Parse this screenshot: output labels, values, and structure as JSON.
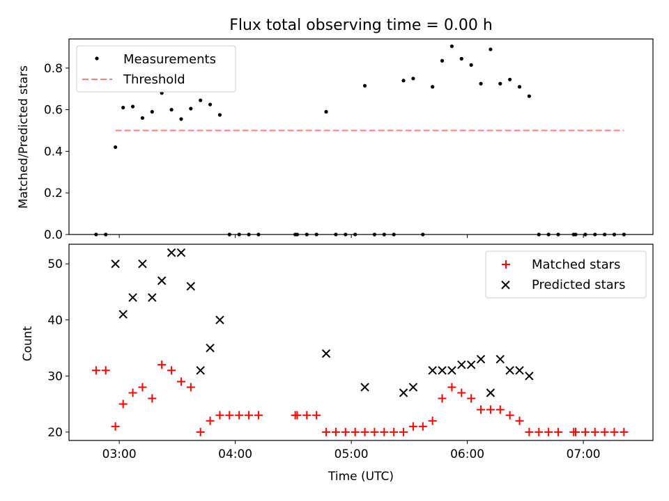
{
  "figure": {
    "title": "Flux total observing time = 0.00 h"
  },
  "chart_data": [
    {
      "type": "scatter",
      "title": "Flux total observing time = 0.00 h",
      "xlabel": "",
      "ylabel": "Matched/Predicted stars",
      "x_unit": "time (UTC, HH:MM)",
      "xlim": [
        "02:34",
        "07:36"
      ],
      "ylim": [
        0,
        0.94
      ],
      "yticks": [
        0.0,
        0.2,
        0.4,
        0.6,
        0.8
      ],
      "yticklabels": [
        "0.0",
        "0.2",
        "0.4",
        "0.6",
        "0.8"
      ],
      "grid": false,
      "legend": {
        "position": "upper-left",
        "entries": [
          "Measurements",
          "Threshold"
        ]
      },
      "series": [
        {
          "name": "Measurements",
          "kind": "points",
          "color": "#000000",
          "points": [
            [
              "02:48",
              0.0
            ],
            [
              "02:53",
              0.0
            ],
            [
              "02:58",
              0.42
            ],
            [
              "03:02",
              0.61
            ],
            [
              "03:07",
              0.615
            ],
            [
              "03:12",
              0.56
            ],
            [
              "03:17",
              0.59
            ],
            [
              "03:22",
              0.68
            ],
            [
              "03:27",
              0.6
            ],
            [
              "03:32",
              0.555
            ],
            [
              "03:37",
              0.605
            ],
            [
              "03:42",
              0.645
            ],
            [
              "03:47",
              0.625
            ],
            [
              "03:52",
              0.575
            ],
            [
              "03:57",
              0.0
            ],
            [
              "04:02",
              0.0
            ],
            [
              "04:07",
              0.0
            ],
            [
              "04:12",
              0.0
            ],
            [
              "04:31",
              0.0
            ],
            [
              "04:32",
              0.0
            ],
            [
              "04:37",
              0.0
            ],
            [
              "04:42",
              0.0
            ],
            [
              "04:47",
              0.59
            ],
            [
              "04:52",
              0.0
            ],
            [
              "04:57",
              0.0
            ],
            [
              "05:02",
              0.0
            ],
            [
              "05:07",
              0.715
            ],
            [
              "05:12",
              0.0
            ],
            [
              "05:17",
              0.0
            ],
            [
              "05:22",
              0.0
            ],
            [
              "05:27",
              0.74
            ],
            [
              "05:32",
              0.75
            ],
            [
              "05:37",
              0.0
            ],
            [
              "05:42",
              0.71
            ],
            [
              "05:47",
              0.835
            ],
            [
              "05:52",
              0.905
            ],
            [
              "05:57",
              0.845
            ],
            [
              "06:02",
              0.815
            ],
            [
              "06:07",
              0.725
            ],
            [
              "06:12",
              0.89
            ],
            [
              "06:17",
              0.725
            ],
            [
              "06:22",
              0.745
            ],
            [
              "06:27",
              0.71
            ],
            [
              "06:32",
              0.665
            ],
            [
              "06:37",
              0.0
            ],
            [
              "06:42",
              0.0
            ],
            [
              "06:47",
              0.0
            ],
            [
              "06:55",
              0.0
            ],
            [
              "06:56",
              0.0
            ],
            [
              "07:01",
              0.0
            ],
            [
              "07:06",
              0.0
            ],
            [
              "07:11",
              0.0
            ],
            [
              "07:16",
              0.0
            ],
            [
              "07:21",
              0.0
            ]
          ]
        },
        {
          "name": "Threshold",
          "kind": "dashed-line",
          "color": "#ff7f7f",
          "points": [
            [
              "02:58",
              0.5
            ],
            [
              "07:21",
              0.5
            ]
          ]
        }
      ]
    },
    {
      "type": "scatter",
      "title": "",
      "xlabel": "Time (UTC)",
      "ylabel": "Count",
      "x_unit": "time (UTC, HH:MM)",
      "xlim": [
        "02:34",
        "07:36"
      ],
      "ylim": [
        18.5,
        53.5
      ],
      "xticks": [
        "03:00",
        "04:00",
        "05:00",
        "06:00",
        "07:00"
      ],
      "xticklabels": [
        "03:00",
        "04:00",
        "05:00",
        "06:00",
        "07:00"
      ],
      "yticks": [
        20,
        30,
        40,
        50
      ],
      "yticklabels": [
        "20",
        "30",
        "40",
        "50"
      ],
      "grid": false,
      "legend": {
        "position": "upper-right",
        "entries": [
          "Matched stars",
          "Predicted stars"
        ]
      },
      "series": [
        {
          "name": "Matched stars",
          "marker": "plus",
          "color": "#ff0000",
          "points": [
            [
              "02:48",
              31
            ],
            [
              "02:53",
              31
            ],
            [
              "02:58",
              21
            ],
            [
              "03:02",
              25
            ],
            [
              "03:07",
              27
            ],
            [
              "03:12",
              28
            ],
            [
              "03:17",
              26
            ],
            [
              "03:22",
              32
            ],
            [
              "03:27",
              31
            ],
            [
              "03:32",
              29
            ],
            [
              "03:37",
              28
            ],
            [
              "03:42",
              20
            ],
            [
              "03:47",
              22
            ],
            [
              "03:52",
              23
            ],
            [
              "03:57",
              23
            ],
            [
              "04:02",
              23
            ],
            [
              "04:07",
              23
            ],
            [
              "04:12",
              23
            ],
            [
              "04:31",
              23
            ],
            [
              "04:32",
              23
            ],
            [
              "04:37",
              23
            ],
            [
              "04:42",
              23
            ],
            [
              "04:47",
              20
            ],
            [
              "04:52",
              20
            ],
            [
              "04:57",
              20
            ],
            [
              "05:02",
              20
            ],
            [
              "05:07",
              20
            ],
            [
              "05:12",
              20
            ],
            [
              "05:17",
              20
            ],
            [
              "05:22",
              20
            ],
            [
              "05:27",
              20
            ],
            [
              "05:32",
              21
            ],
            [
              "05:37",
              21
            ],
            [
              "05:42",
              22
            ],
            [
              "05:47",
              26
            ],
            [
              "05:52",
              28
            ],
            [
              "05:57",
              27
            ],
            [
              "06:02",
              26
            ],
            [
              "06:07",
              24
            ],
            [
              "06:12",
              24
            ],
            [
              "06:17",
              24
            ],
            [
              "06:22",
              23
            ],
            [
              "06:27",
              22
            ],
            [
              "06:32",
              20
            ],
            [
              "06:37",
              20
            ],
            [
              "06:42",
              20
            ],
            [
              "06:47",
              20
            ],
            [
              "06:55",
              20
            ],
            [
              "06:56",
              20
            ],
            [
              "07:01",
              20
            ],
            [
              "07:06",
              20
            ],
            [
              "07:11",
              20
            ],
            [
              "07:16",
              20
            ],
            [
              "07:21",
              20
            ]
          ]
        },
        {
          "name": "Predicted stars",
          "marker": "x",
          "color": "#000000",
          "points": [
            [
              "02:58",
              50
            ],
            [
              "03:02",
              41
            ],
            [
              "03:07",
              44
            ],
            [
              "03:12",
              50
            ],
            [
              "03:17",
              44
            ],
            [
              "03:22",
              47
            ],
            [
              "03:27",
              52
            ],
            [
              "03:32",
              52
            ],
            [
              "03:37",
              46
            ],
            [
              "03:42",
              31
            ],
            [
              "03:47",
              35
            ],
            [
              "03:52",
              40
            ],
            [
              "04:47",
              34
            ],
            [
              "05:07",
              28
            ],
            [
              "05:27",
              27
            ],
            [
              "05:32",
              28
            ],
            [
              "05:42",
              31
            ],
            [
              "05:47",
              31
            ],
            [
              "05:52",
              31
            ],
            [
              "05:57",
              32
            ],
            [
              "06:02",
              32
            ],
            [
              "06:07",
              33
            ],
            [
              "06:12",
              27
            ],
            [
              "06:17",
              33
            ],
            [
              "06:22",
              31
            ],
            [
              "06:27",
              31
            ],
            [
              "06:32",
              30
            ]
          ]
        }
      ]
    }
  ]
}
